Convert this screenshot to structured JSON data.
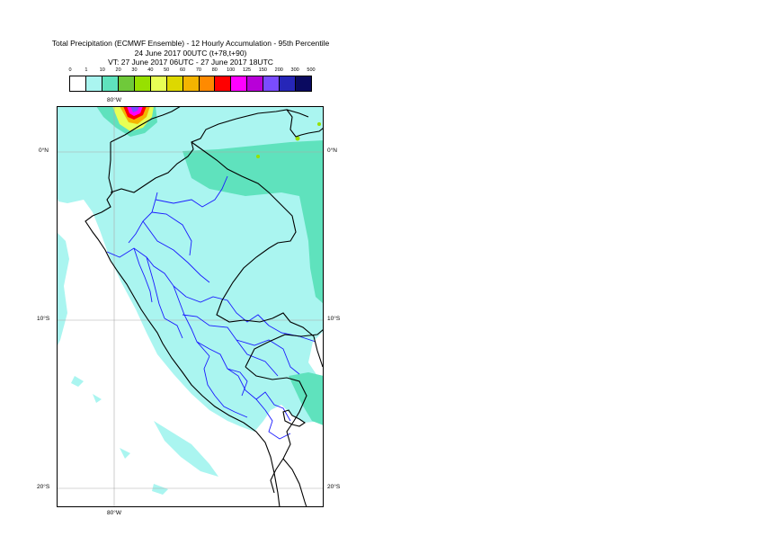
{
  "title": {
    "line1": "Total Precipitation (ECMWF Ensemble) - 12 Hourly Accumulation - 95th Percentile",
    "line2": "24 June 2017 00UTC (t+78,t+90)",
    "line3": "VT: 27 June 2017 06UTC - 27 June 2017 18UTC"
  },
  "legend": {
    "ticks": [
      "0",
      "1",
      "10",
      "20",
      "30",
      "40",
      "50",
      "60",
      "70",
      "80",
      "100",
      "125",
      "150",
      "200",
      "300",
      "500"
    ],
    "colors": [
      "#ffffff",
      "#aaf5f0",
      "#5fe2bd",
      "#6fc93a",
      "#97e000",
      "#e8ff55",
      "#ddd800",
      "#f4b400",
      "#ff8a00",
      "#ff0000",
      "#ff00ff",
      "#b800d8",
      "#7a4cff",
      "#2626b8",
      "#0a0a60"
    ]
  },
  "map": {
    "lat_labels": {
      "left": [
        "0°N",
        "10°S",
        "20°S"
      ],
      "right": [
        "0°N",
        "10°S",
        "20°S"
      ]
    },
    "lon_labels": {
      "top": "80°W",
      "bottom": "80°W"
    },
    "colors": {
      "light_precip": "#aaf5f0",
      "moderate_precip": "#5fe2bd",
      "country_border": "#000000",
      "region_border": "#0000cc",
      "grid": "#aaaaaa"
    }
  }
}
